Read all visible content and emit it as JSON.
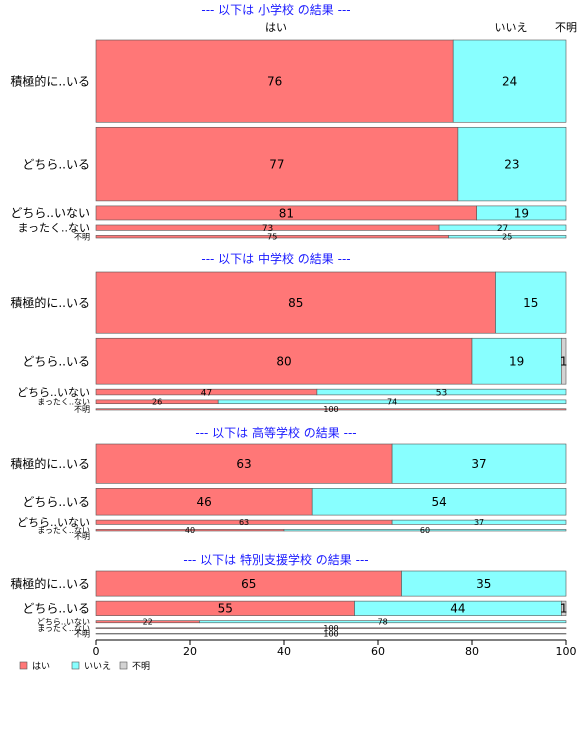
{
  "colors": {
    "yes": "#ff7777",
    "no": "#88ffff",
    "unknown": "#d3d3d3",
    "title": "#1a1aff"
  },
  "column_headers": [
    "はい",
    "いいえ",
    "不明"
  ],
  "chart_data": {
    "type": "bar",
    "orientation": "horizontal",
    "stacked": true,
    "series_names": [
      "はい",
      "いいえ",
      "不明"
    ],
    "xlim": [
      0,
      100
    ],
    "xticks": [
      0,
      20,
      40,
      60,
      80,
      100
    ],
    "legend": {
      "position": "bottom-left",
      "entries": [
        "はい",
        "いいえ",
        "不明"
      ]
    },
    "sections": [
      {
        "title": "--- 以下は 小学校 の結果 ---",
        "rows": [
          {
            "label": "積極的に..いる",
            "weight": 0.38,
            "values": [
              76,
              24,
              0
            ]
          },
          {
            "label": "どちら..いる",
            "weight": 0.34,
            "values": [
              77,
              23,
              0
            ]
          },
          {
            "label": "どちら..いない",
            "weight": 0.065,
            "values": [
              81,
              19,
              0
            ]
          },
          {
            "label": "まったく..ない",
            "weight": 0.025,
            "values": [
              73,
              27,
              0
            ]
          },
          {
            "label": "不明",
            "weight": 0.012,
            "values": [
              75,
              25,
              0
            ]
          }
        ]
      },
      {
        "title": "--- 以下は 中学校 の結果 ---",
        "rows": [
          {
            "label": "積極的に..いる",
            "weight": 0.48,
            "values": [
              85,
              15,
              0
            ]
          },
          {
            "label": "どちら..いる",
            "weight": 0.36,
            "values": [
              80,
              19,
              1
            ]
          },
          {
            "label": "どちら..いない",
            "weight": 0.045,
            "values": [
              47,
              53,
              0
            ]
          },
          {
            "label": "まったく..ない",
            "weight": 0.03,
            "values": [
              26,
              74,
              0
            ]
          },
          {
            "label": "不明",
            "weight": 0.01,
            "values": [
              100,
              0,
              0
            ]
          }
        ]
      },
      {
        "title": "--- 以下は 高等学校 の結果 ---",
        "rows": [
          {
            "label": "積極的に..いる",
            "weight": 0.5,
            "values": [
              63,
              37,
              0
            ]
          },
          {
            "label": "どちら..いる",
            "weight": 0.34,
            "values": [
              46,
              54,
              0
            ]
          },
          {
            "label": "どちら..いない",
            "weight": 0.055,
            "values": [
              63,
              37,
              0
            ]
          },
          {
            "label": "まったく..ない",
            "weight": 0.02,
            "values": [
              40,
              60,
              0
            ]
          },
          {
            "label": "不明",
            "weight": 0.0,
            "values": []
          }
        ]
      },
      {
        "title": "--- 以下は 特別支援学校 の結果 ---",
        "rows": [
          {
            "label": "積極的に..いる",
            "weight": 0.52,
            "values": [
              65,
              35,
              0
            ]
          },
          {
            "label": "どちら..いる",
            "weight": 0.3,
            "values": [
              55,
              44,
              1
            ]
          },
          {
            "label": "どちら..いない",
            "weight": 0.045,
            "values": [
              22,
              78,
              0
            ]
          },
          {
            "label": "まったく..ない",
            "weight": 0.015,
            "values": [
              100,
              0,
              0
            ]
          },
          {
            "label": "不明",
            "weight": 0.01,
            "values": [
              100,
              0,
              0
            ]
          }
        ]
      }
    ]
  }
}
